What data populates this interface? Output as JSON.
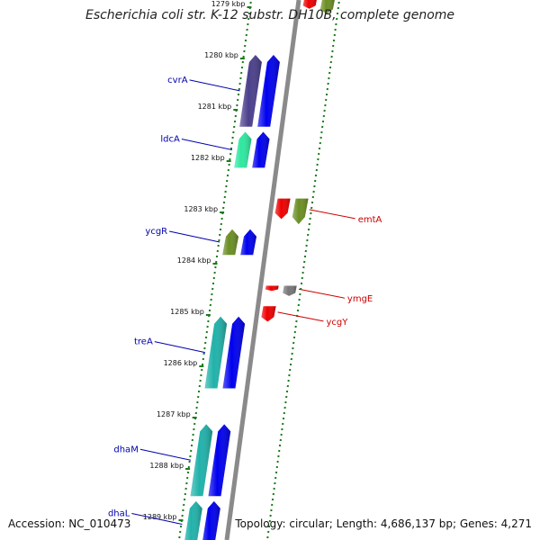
{
  "title": "Escherichia coli str. K-12 substr. DH10B, complete genome",
  "footer": {
    "accession": "Accession: NC_010473",
    "topology": "Topology: circular; Length: 4,686,137 bp; Genes: 4,271"
  },
  "colors": {
    "blue": "#0000ee",
    "indigo": "#4a3f8c",
    "green": "#6b8e23",
    "teal": "#20b2aa",
    "mint": "#2ee8a0",
    "red": "#ee0000",
    "gray": "#777777",
    "left_label": "#0000aa",
    "right_label": "#cc0000",
    "tick": "#1a7a1a"
  },
  "ticks": [
    {
      "label": "1279 kbp",
      "kbp": 1279
    },
    {
      "label": "1280 kbp",
      "kbp": 1280
    },
    {
      "label": "1281 kbp",
      "kbp": 1281
    },
    {
      "label": "1282 kbp",
      "kbp": 1282
    },
    {
      "label": "1283 kbp",
      "kbp": 1283
    },
    {
      "label": "1284 kbp",
      "kbp": 1284
    },
    {
      "label": "1285 kbp",
      "kbp": 1285
    },
    {
      "label": "1286 kbp",
      "kbp": 1286
    },
    {
      "label": "1287 kbp",
      "kbp": 1287
    },
    {
      "label": "1288 kbp",
      "kbp": 1288
    },
    {
      "label": "1289 kbp",
      "kbp": 1289
    }
  ],
  "genes": [
    {
      "name": "cvrA",
      "strand": "left",
      "color": "indigo",
      "start": 1280.0,
      "end": 1281.4
    },
    {
      "name": "ldcA",
      "strand": "left",
      "color": "mint",
      "start": 1281.5,
      "end": 1282.2
    },
    {
      "name": "ycgR",
      "strand": "left",
      "color": "green",
      "start": 1283.4,
      "end": 1283.9
    },
    {
      "name": "treA",
      "strand": "left",
      "color": "teal",
      "start": 1285.1,
      "end": 1286.5
    },
    {
      "name": "dhaM",
      "strand": "left",
      "color": "teal",
      "start": 1287.2,
      "end": 1288.6
    },
    {
      "name": "dhaL",
      "strand": "left",
      "color": "teal",
      "start": 1288.7,
      "end": 1289.6
    },
    {
      "name": "emtA",
      "strand": "right",
      "color": "green",
      "start": 1282.8,
      "end": 1283.3
    },
    {
      "name": "ymgE",
      "strand": "right",
      "color": "gray",
      "start": 1284.5,
      "end": 1284.7
    },
    {
      "name": "ycgY",
      "strand": "right",
      "color": "red",
      "start": 1284.9,
      "end": 1285.2
    }
  ],
  "unlabeled_features": [
    {
      "track": "left-outer",
      "color": "blue",
      "start": 1280.0,
      "end": 1281.4
    },
    {
      "track": "left-outer",
      "color": "blue",
      "start": 1281.5,
      "end": 1282.2
    },
    {
      "track": "left-outer",
      "color": "blue",
      "start": 1283.4,
      "end": 1283.9
    },
    {
      "track": "left-outer",
      "color": "blue",
      "start": 1285.1,
      "end": 1286.5
    },
    {
      "track": "left-outer",
      "color": "blue",
      "start": 1287.2,
      "end": 1288.6
    },
    {
      "track": "left-outer",
      "color": "blue",
      "start": 1288.7,
      "end": 1289.6
    },
    {
      "track": "right-inner",
      "color": "red",
      "start": 1278.9,
      "end": 1279.1
    },
    {
      "track": "right-outer",
      "color": "green",
      "start": 1278.9,
      "end": 1279.2
    },
    {
      "track": "right-inner",
      "color": "red",
      "start": 1282.8,
      "end": 1283.2
    },
    {
      "track": "right-inner",
      "color": "red",
      "start": 1284.5,
      "end": 1284.6
    }
  ]
}
